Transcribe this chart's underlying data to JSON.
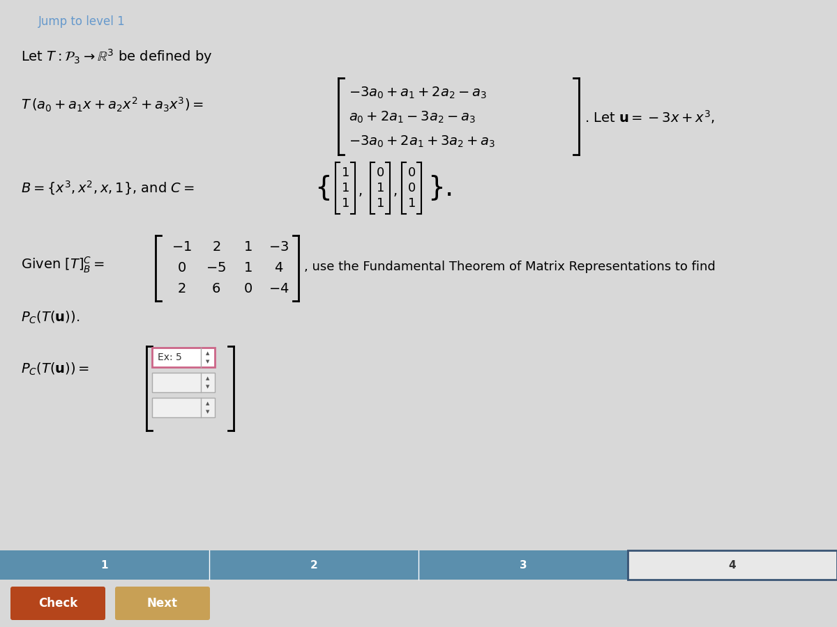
{
  "bg_color": "#d8d8d8",
  "jump_text": "Jump to level 1",
  "jump_color": "#6699cc",
  "title_line": "Let $T : \\mathcal{P}_3 \\rightarrow \\mathbb{R}^3$ be defined by",
  "transform_lhs": "$T\\,(a_0 + a_1 x + a_2 x^2 + a_3 x^3) = $",
  "rhs_row1": "$-3a_0 + a_1 + 2a_2 - a_3$",
  "rhs_row2": "$a_0 + 2a_1 - 3a_2 - a_3$",
  "rhs_row3": "$-3a_0 + 2a_1 + 3a_2 + a_3$",
  "let_u_text": ". Let $\\mathbf{u} = -3x + x^3$,",
  "basis_text": "$B = \\{x^3, x^2, x, 1\\}$, and $C = $",
  "c_vec1": [
    "1",
    "1",
    "1"
  ],
  "c_vec2": [
    "0",
    "1",
    "1"
  ],
  "c_vec3": [
    "0",
    "0",
    "1"
  ],
  "given_text": "Given $[T]^C_B = $",
  "mat_row1": [
    "-1",
    "2",
    "1",
    "-3"
  ],
  "mat_row2": [
    "0",
    "-5",
    "1",
    "4"
  ],
  "mat_row3": [
    "2",
    "6",
    "0",
    "-4"
  ],
  "use_text": ", use the Fundamental Theorem of Matrix Representations to find",
  "pc_tu": "$P_C(T(\\mathbf{u}))$.",
  "pc_eq": "$P_C(T(\\mathbf{u})) = $",
  "input1_text": "Ex: 5",
  "progress_color": "#5b8fad",
  "progress_labels": [
    "1",
    "2",
    "3",
    "4"
  ],
  "check_color": "#b5451b",
  "next_color": "#c8a055",
  "check_text": "Check",
  "next_text": "Next",
  "fs": 14,
  "fs_small": 11
}
